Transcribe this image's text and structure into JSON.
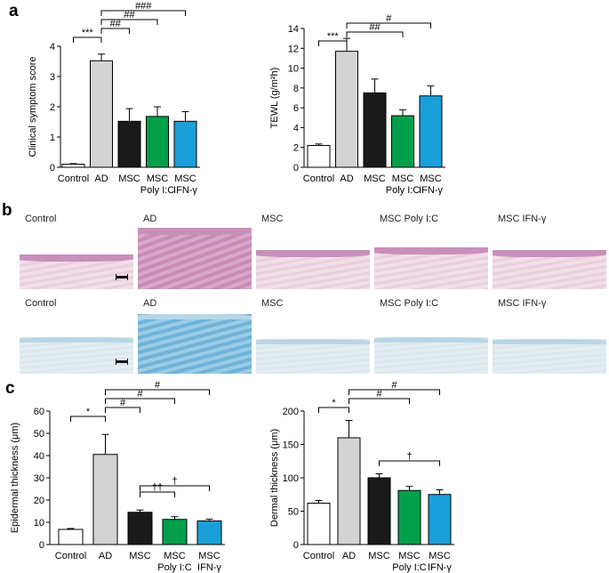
{
  "panels": {
    "a": "a",
    "b": "b",
    "c": "c"
  },
  "colors": {
    "Control": "#ffffff",
    "AD": "#d3d3d3",
    "MSC": "#1a1a1a",
    "MSC Poly I:C": "#00a04a",
    "MSC IFN-γ": "#1a9fd9"
  },
  "chart_data": [
    {
      "type": "bar",
      "ylabel": "Clinical symptom score",
      "categories": [
        "Control",
        "AD",
        "MSC",
        "MSC Poly I:C",
        "MSC IFN-γ"
      ],
      "x_tick_labels": [
        [
          "Control"
        ],
        [
          "AD"
        ],
        [
          "MSC"
        ],
        [
          "MSC",
          "Poly I:C"
        ],
        [
          "MSC",
          "IFN-γ"
        ]
      ],
      "values": [
        0.1,
        3.52,
        1.52,
        1.68,
        1.52
      ],
      "errors": [
        0.02,
        0.22,
        0.42,
        0.32,
        0.32
      ],
      "ylim": [
        0,
        4
      ],
      "yticks": [
        0,
        1,
        2,
        3,
        4
      ],
      "significance": [
        {
          "from": 0,
          "to": 1,
          "label": "***"
        },
        {
          "from": 1,
          "to": 2,
          "label": "##"
        },
        {
          "from": 1,
          "to": 3,
          "label": "##"
        },
        {
          "from": 1,
          "to": 4,
          "label": "###"
        }
      ]
    },
    {
      "type": "bar",
      "ylabel": "TEWL (g/m²h)",
      "categories": [
        "Control",
        "AD",
        "MSC",
        "MSC Poly I:C",
        "MSC IFN-γ"
      ],
      "x_tick_labels": [
        [
          "Control"
        ],
        [
          "AD"
        ],
        [
          "MSC"
        ],
        [
          "MSC",
          "Poly I:C"
        ],
        [
          "MSC",
          "IFN-γ"
        ]
      ],
      "values": [
        2.2,
        11.7,
        7.5,
        5.2,
        7.2
      ],
      "errors": [
        0.15,
        1.3,
        1.4,
        0.6,
        1.0
      ],
      "ylim": [
        0,
        14
      ],
      "yticks": [
        0,
        2,
        4,
        6,
        8,
        10,
        12,
        14
      ],
      "significance": [
        {
          "from": 0,
          "to": 1,
          "label": "***"
        },
        {
          "from": 1,
          "to": 3,
          "label": "##"
        },
        {
          "from": 1,
          "to": 4,
          "label": "#"
        }
      ]
    },
    {
      "type": "bar",
      "ylabel": "Epidermal thickness (μm)",
      "categories": [
        "Control",
        "AD",
        "MSC",
        "MSC Poly I:C",
        "MSC IFN-γ"
      ],
      "x_tick_labels": [
        [
          "Control"
        ],
        [
          "AD"
        ],
        [
          "MSC"
        ],
        [
          "MSC",
          "Poly I:C"
        ],
        [
          "MSC",
          "IFN-γ"
        ]
      ],
      "values": [
        6.8,
        40.5,
        14.5,
        11.3,
        10.6
      ],
      "errors": [
        0.4,
        9.0,
        1.0,
        1.2,
        0.8
      ],
      "ylim": [
        0,
        60
      ],
      "yticks": [
        0,
        10,
        20,
        30,
        40,
        50,
        60
      ],
      "significance": [
        {
          "from": 0,
          "to": 1,
          "label": "*"
        },
        {
          "from": 1,
          "to": 2,
          "label": "#"
        },
        {
          "from": 1,
          "to": 3,
          "label": "#"
        },
        {
          "from": 1,
          "to": 4,
          "label": "#"
        },
        {
          "from": 2,
          "to": 3,
          "label": "††"
        },
        {
          "from": 2,
          "to": 4,
          "label": "†"
        }
      ]
    },
    {
      "type": "bar",
      "ylabel": "Dermal thickness (μm)",
      "categories": [
        "Control",
        "AD",
        "MSC",
        "MSC Poly I:C",
        "MSC IFN-γ"
      ],
      "x_tick_labels": [
        [
          "Control"
        ],
        [
          "AD"
        ],
        [
          "MSC"
        ],
        [
          "MSC",
          "Poly I:C"
        ],
        [
          "MSC",
          "IFN-γ"
        ]
      ],
      "values": [
        62,
        160,
        100,
        81,
        75
      ],
      "errors": [
        4,
        26,
        6,
        6,
        7
      ],
      "ylim": [
        0,
        200
      ],
      "yticks": [
        0,
        50,
        100,
        150,
        200
      ],
      "significance": [
        {
          "from": 0,
          "to": 1,
          "label": "*"
        },
        {
          "from": 1,
          "to": 3,
          "label": "#"
        },
        {
          "from": 1,
          "to": 4,
          "label": "#"
        },
        {
          "from": 2,
          "to": 4,
          "label": "†"
        }
      ]
    }
  ],
  "histology": {
    "he_row": [
      "Control",
      "AD",
      "MSC",
      "MSC Poly I:C",
      "MSC IFN-γ"
    ],
    "blue_row": [
      "Control",
      "AD",
      "MSC",
      "MSC Poly I:C",
      "MSC IFN-γ"
    ]
  }
}
